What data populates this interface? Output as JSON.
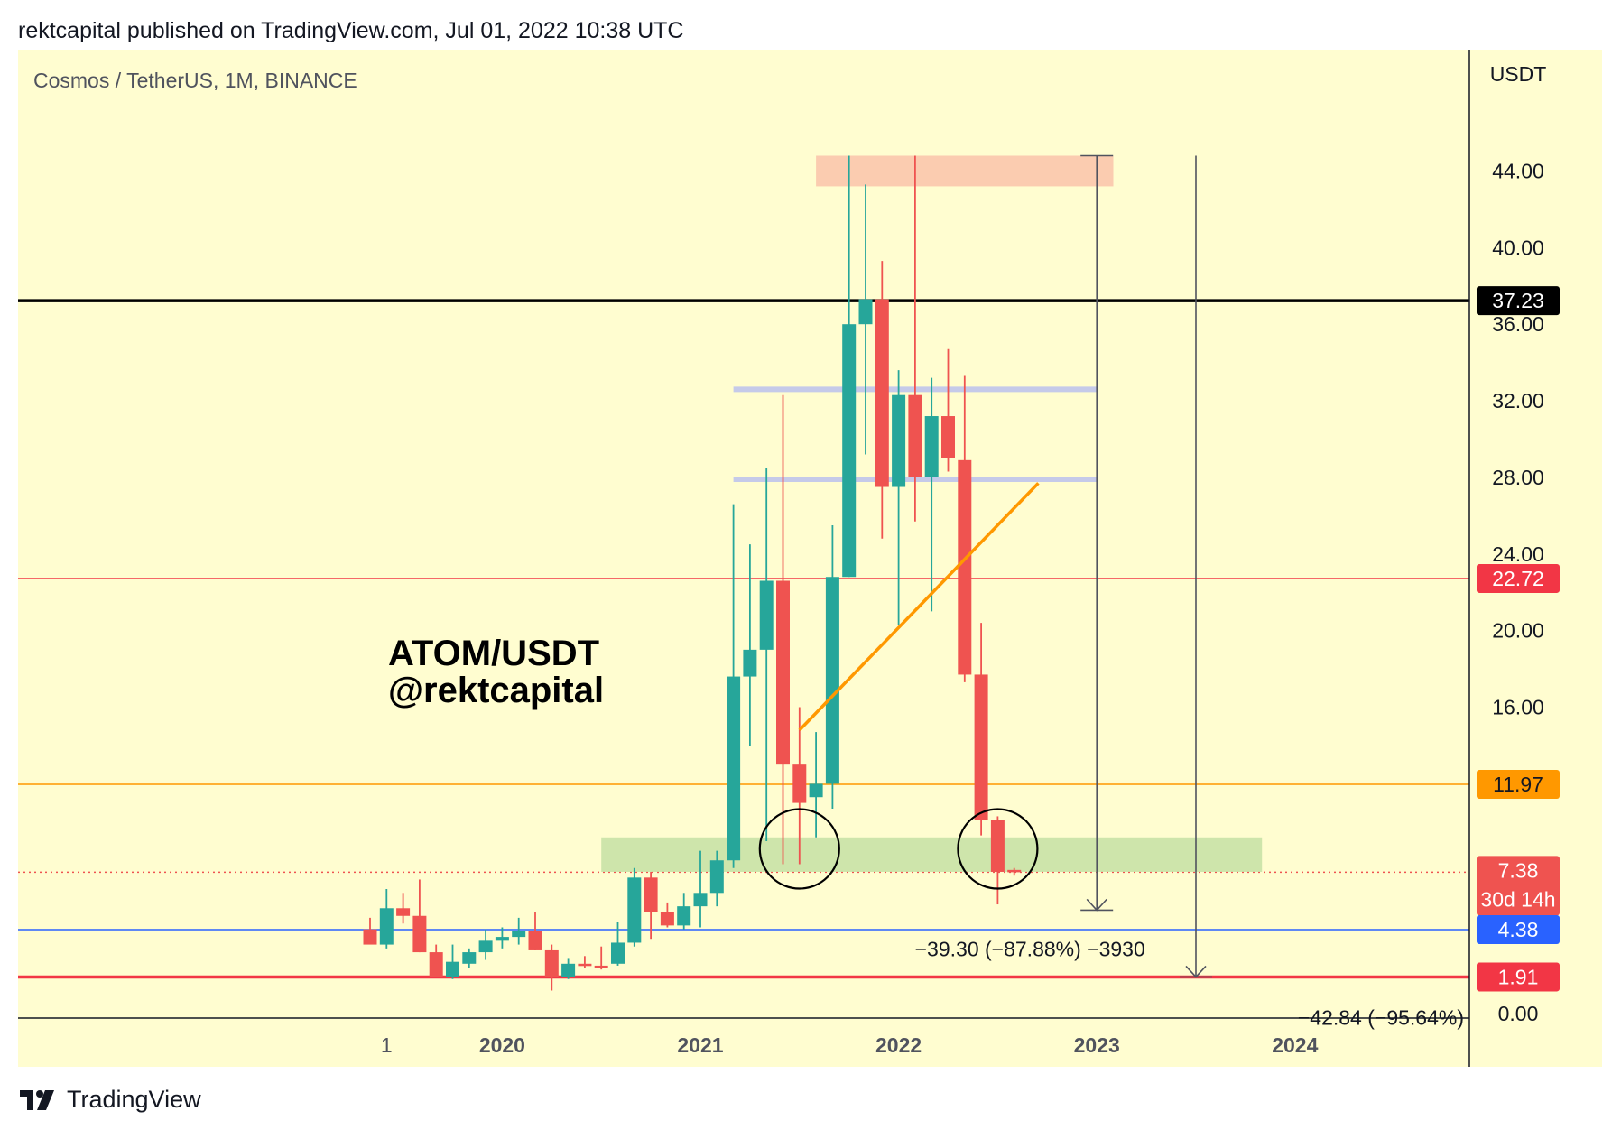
{
  "header": {
    "publish_line": "rektcapital published on TradingView.com, Jul 01, 2022 10:38 UTC"
  },
  "footer": {
    "brand": "TradingView",
    "logo_icon": "tradingview-logo-icon"
  },
  "colors": {
    "background": "#fffdd0",
    "bullish": "#26a69a",
    "bearish": "#ef5350",
    "resistance_box": "#fbc6ac",
    "support_box": "#c5e1a5",
    "blue_line": "#2962ff",
    "orange": "#ff9800",
    "black_line": "#000000",
    "red_level": "#f23645",
    "grey_level": "#c5cae9"
  },
  "chart_data": {
    "type": "candlestick",
    "symbol_line": "Cosmos / TetherUS, 1M, BINANCE",
    "price_axis_unit": "USDT",
    "annotation_title": "ATOM/USDT",
    "annotation_author": "@rektcapital",
    "yticks": [
      "0.00",
      "16.00",
      "20.00",
      "24.00",
      "28.00",
      "32.00",
      "36.00",
      "40.00",
      "44.00"
    ],
    "xticks": [
      "1",
      "2020",
      "2021",
      "2022",
      "2023",
      "2024"
    ],
    "ylim": [
      -2.5,
      48.5
    ],
    "x_axis_months": {
      "start": "2019-05",
      "end": "2024-10"
    },
    "candles": [
      {
        "t": "2019-05",
        "o": 4.4,
        "h": 5.0,
        "l": 3.9,
        "c": 3.6
      },
      {
        "t": "2019-06",
        "o": 3.6,
        "h": 6.5,
        "l": 3.4,
        "c": 5.5
      },
      {
        "t": "2019-07",
        "o": 5.5,
        "h": 6.3,
        "l": 4.7,
        "c": 5.1
      },
      {
        "t": "2019-08",
        "o": 5.1,
        "h": 7.0,
        "l": 3.2,
        "c": 3.2
      },
      {
        "t": "2019-09",
        "o": 3.2,
        "h": 3.6,
        "l": 1.9,
        "c": 1.9
      },
      {
        "t": "2019-10",
        "o": 1.9,
        "h": 3.6,
        "l": 1.8,
        "c": 2.7
      },
      {
        "t": "2019-11",
        "o": 2.6,
        "h": 3.4,
        "l": 2.4,
        "c": 3.2
      },
      {
        "t": "2019-12",
        "o": 3.2,
        "h": 4.4,
        "l": 2.8,
        "c": 3.8
      },
      {
        "t": "2020-01",
        "o": 3.8,
        "h": 4.5,
        "l": 3.4,
        "c": 4.0
      },
      {
        "t": "2020-02",
        "o": 4.0,
        "h": 5.0,
        "l": 3.6,
        "c": 4.3
      },
      {
        "t": "2020-03",
        "o": 4.3,
        "h": 5.3,
        "l": 3.3,
        "c": 3.3
      },
      {
        "t": "2020-04",
        "o": 3.3,
        "h": 3.6,
        "l": 1.2,
        "c": 1.9
      },
      {
        "t": "2020-05",
        "o": 1.9,
        "h": 2.9,
        "l": 1.8,
        "c": 2.6
      },
      {
        "t": "2020-06",
        "o": 2.6,
        "h": 3.0,
        "l": 2.4,
        "c": 2.5
      },
      {
        "t": "2020-07",
        "o": 2.5,
        "h": 3.5,
        "l": 2.3,
        "c": 2.4
      },
      {
        "t": "2020-08",
        "o": 2.6,
        "h": 4.8,
        "l": 2.5,
        "c": 3.7
      },
      {
        "t": "2020-09",
        "o": 3.7,
        "h": 7.6,
        "l": 3.5,
        "c": 7.1
      },
      {
        "t": "2020-10",
        "o": 7.1,
        "h": 7.4,
        "l": 3.9,
        "c": 5.3
      },
      {
        "t": "2020-11",
        "o": 5.3,
        "h": 5.8,
        "l": 4.5,
        "c": 4.6
      },
      {
        "t": "2020-12",
        "o": 4.6,
        "h": 6.3,
        "l": 4.4,
        "c": 5.6
      },
      {
        "t": "2021-01",
        "o": 5.6,
        "h": 8.5,
        "l": 4.5,
        "c": 6.3
      },
      {
        "t": "2021-02",
        "o": 6.3,
        "h": 8.5,
        "l": 5.6,
        "c": 8.0
      },
      {
        "t": "2021-03",
        "o": 8.0,
        "h": 26.6,
        "l": 7.6,
        "c": 17.6
      },
      {
        "t": "2021-04",
        "o": 17.6,
        "h": 24.5,
        "l": 14.0,
        "c": 19.0
      },
      {
        "t": "2021-05",
        "o": 19.0,
        "h": 28.5,
        "l": 9.0,
        "c": 22.6
      },
      {
        "t": "2021-06",
        "o": 22.6,
        "h": 32.3,
        "l": 7.8,
        "c": 13.0
      },
      {
        "t": "2021-07",
        "o": 13.0,
        "h": 16.0,
        "l": 7.8,
        "c": 11.0
      },
      {
        "t": "2021-08",
        "o": 11.3,
        "h": 14.7,
        "l": 9.2,
        "c": 12.0
      },
      {
        "t": "2021-09",
        "o": 12.0,
        "h": 25.5,
        "l": 10.7,
        "c": 22.8
      },
      {
        "t": "2021-10",
        "o": 22.8,
        "h": 44.8,
        "l": 22.8,
        "c": 36.0
      },
      {
        "t": "2021-11",
        "o": 36.0,
        "h": 43.3,
        "l": 29.2,
        "c": 37.3
      },
      {
        "t": "2021-12",
        "o": 37.3,
        "h": 39.3,
        "l": 24.8,
        "c": 27.5
      },
      {
        "t": "2022-01",
        "o": 27.5,
        "h": 33.6,
        "l": 20.3,
        "c": 32.3
      },
      {
        "t": "2022-02",
        "o": 32.3,
        "h": 44.8,
        "l": 25.7,
        "c": 28.0
      },
      {
        "t": "2022-03",
        "o": 28.0,
        "h": 33.2,
        "l": 21.0,
        "c": 31.2
      },
      {
        "t": "2022-04",
        "o": 31.2,
        "h": 34.7,
        "l": 28.3,
        "c": 29.0
      },
      {
        "t": "2022-05",
        "o": 28.9,
        "h": 33.3,
        "l": 17.3,
        "c": 17.7
      },
      {
        "t": "2022-06",
        "o": 17.7,
        "h": 20.4,
        "l": 9.3,
        "c": 10.1
      },
      {
        "t": "2022-07",
        "o": 10.1,
        "h": 10.3,
        "l": 5.7,
        "c": 7.4
      },
      {
        "t": "2022-08",
        "o": 7.5,
        "h": 7.6,
        "l": 7.2,
        "c": 7.38
      }
    ],
    "horizontal_levels": [
      {
        "price": 37.23,
        "label": "37.23",
        "color": "#000000",
        "style": "solid-thick"
      },
      {
        "price": 22.72,
        "label": "22.72",
        "color": "#f23645",
        "style": "solid"
      },
      {
        "price": 11.97,
        "label": "11.97",
        "color": "#ff9800",
        "style": "solid"
      },
      {
        "price": 7.38,
        "label": "7.38",
        "sublabel": "30d 14h",
        "color": "#ef5350",
        "style": "dotted"
      },
      {
        "price": 4.38,
        "label": "4.38",
        "color": "#2962ff",
        "style": "solid"
      },
      {
        "price": 1.91,
        "label": "1.91",
        "color": "#f23645",
        "style": "solid-thick"
      }
    ],
    "zones": [
      {
        "name": "resistance",
        "from": "2021-08",
        "to": "2023-02",
        "price_low": 43.2,
        "price_high": 44.8,
        "color": "#fbc6ac"
      },
      {
        "name": "support",
        "from": "2020-07",
        "to": "2023-11",
        "price_low": 7.4,
        "price_high": 9.2,
        "color": "#c5e1a5"
      }
    ],
    "grey_levels": [
      {
        "from": "2021-03",
        "to": "2023-01",
        "price": 32.6
      },
      {
        "from": "2021-03",
        "to": "2023-01",
        "price": 27.9
      }
    ],
    "trendline": {
      "from": {
        "t": "2021-07",
        "price": 14.8
      },
      "to": {
        "t": "2022-07",
        "price": 27.7
      },
      "color": "#ff9800"
    },
    "circles": [
      {
        "t": "2021-07",
        "price": 8.6
      },
      {
        "t": "2022-07",
        "price": 8.6
      }
    ],
    "measures": [
      {
        "t": "2023-01",
        "from": 44.8,
        "to": 5.4,
        "label": "−39.30 (−87.88%) −3930"
      },
      {
        "t": "2023-07",
        "from": 44.8,
        "to": 1.91,
        "label": "−42.84 (−95.64%)"
      }
    ]
  }
}
